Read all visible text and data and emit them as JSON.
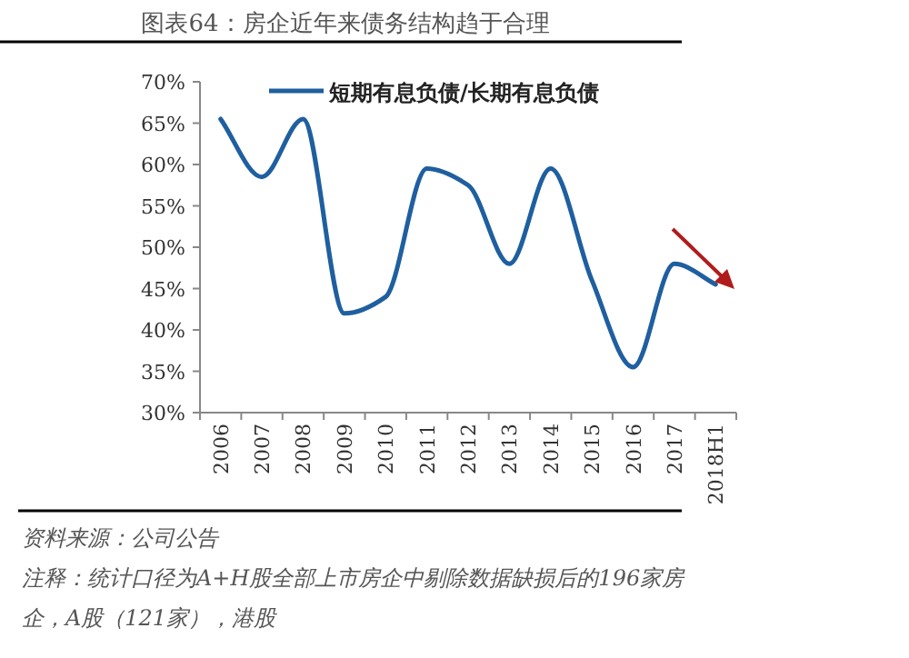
{
  "chart_data": {
    "type": "line",
    "title": "图表64：房企近年来债务结构趋于合理",
    "categories": [
      "2006",
      "2007",
      "2008",
      "2009",
      "2010",
      "2011",
      "2012",
      "2013",
      "2014",
      "2015",
      "2016",
      "2017",
      "2018H1"
    ],
    "series": [
      {
        "name": "短期有息负债/长期有息负债",
        "color": "#1f5fa0",
        "values": [
          65.5,
          58.5,
          65.5,
          42,
          44,
          59.5,
          57.5,
          48,
          59.5,
          46,
          35.5,
          48,
          45.5
        ]
      }
    ],
    "ylim": [
      30,
      70
    ],
    "yticks": [
      {
        "value": 30,
        "label": "30%"
      },
      {
        "value": 35,
        "label": "35%"
      },
      {
        "value": 40,
        "label": "40%"
      },
      {
        "value": 45,
        "label": "45%"
      },
      {
        "value": 50,
        "label": "50%"
      },
      {
        "value": 55,
        "label": "55%"
      },
      {
        "value": 60,
        "label": "60%"
      },
      {
        "value": 65,
        "label": "65%"
      },
      {
        "value": 70,
        "label": "70%"
      }
    ],
    "grid": false,
    "legend": "top",
    "marker": "none",
    "line_style": "solid",
    "annotations": [
      "资料来源：公司公告",
      "注释：统计口径为A+H股全部上市房企中剔除数据缺损后的196家房企，A股（121家），港股"
    ]
  }
}
